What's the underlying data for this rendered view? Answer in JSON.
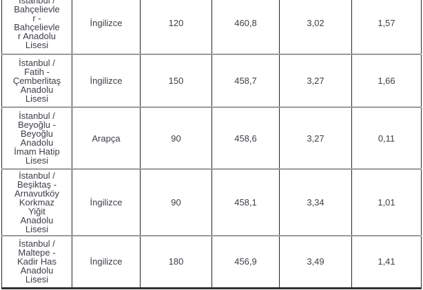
{
  "colors": {
    "background": "#ffffff",
    "text": "#3b3e45",
    "column_border": "#222222",
    "row_border": "#9a9a9a",
    "bottom_border": "#2e2e2e"
  },
  "table": {
    "rows": [
      {
        "cells": [
          "İstanbul /\nBahçelievle\nr -\nBahçelievle\nr Anadolu\nLisesi",
          "İngilizce",
          "120",
          "460,8",
          "3,02",
          "1,57"
        ]
      },
      {
        "cells": [
          "İstanbul /\nFatih -\nÇemberlitaş\nAnadolu\nLisesi",
          "İngilizce",
          "150",
          "458,7",
          "3,27",
          "1,66"
        ]
      },
      {
        "cells": [
          "İstanbul /\nBeyoğlu -\nBeyoğlu\nAnadolu\nİmam Hatip\nLisesi",
          "Arapça",
          "90",
          "458,6",
          "3,27",
          "0,11"
        ]
      },
      {
        "cells": [
          "İstanbul /\nBeşiktaş -\nArnavutköy\nKorkmaz\nYiğit\nAnadolu\nLisesi",
          "İngilizce",
          "90",
          "458,1",
          "3,34",
          "1,01"
        ]
      },
      {
        "cells": [
          "İstanbul /\nMaltepe -\nKadir Has\nAnadolu\nLisesi",
          "İngilizce",
          "180",
          "456,9",
          "3,49",
          "1,41"
        ]
      }
    ]
  }
}
